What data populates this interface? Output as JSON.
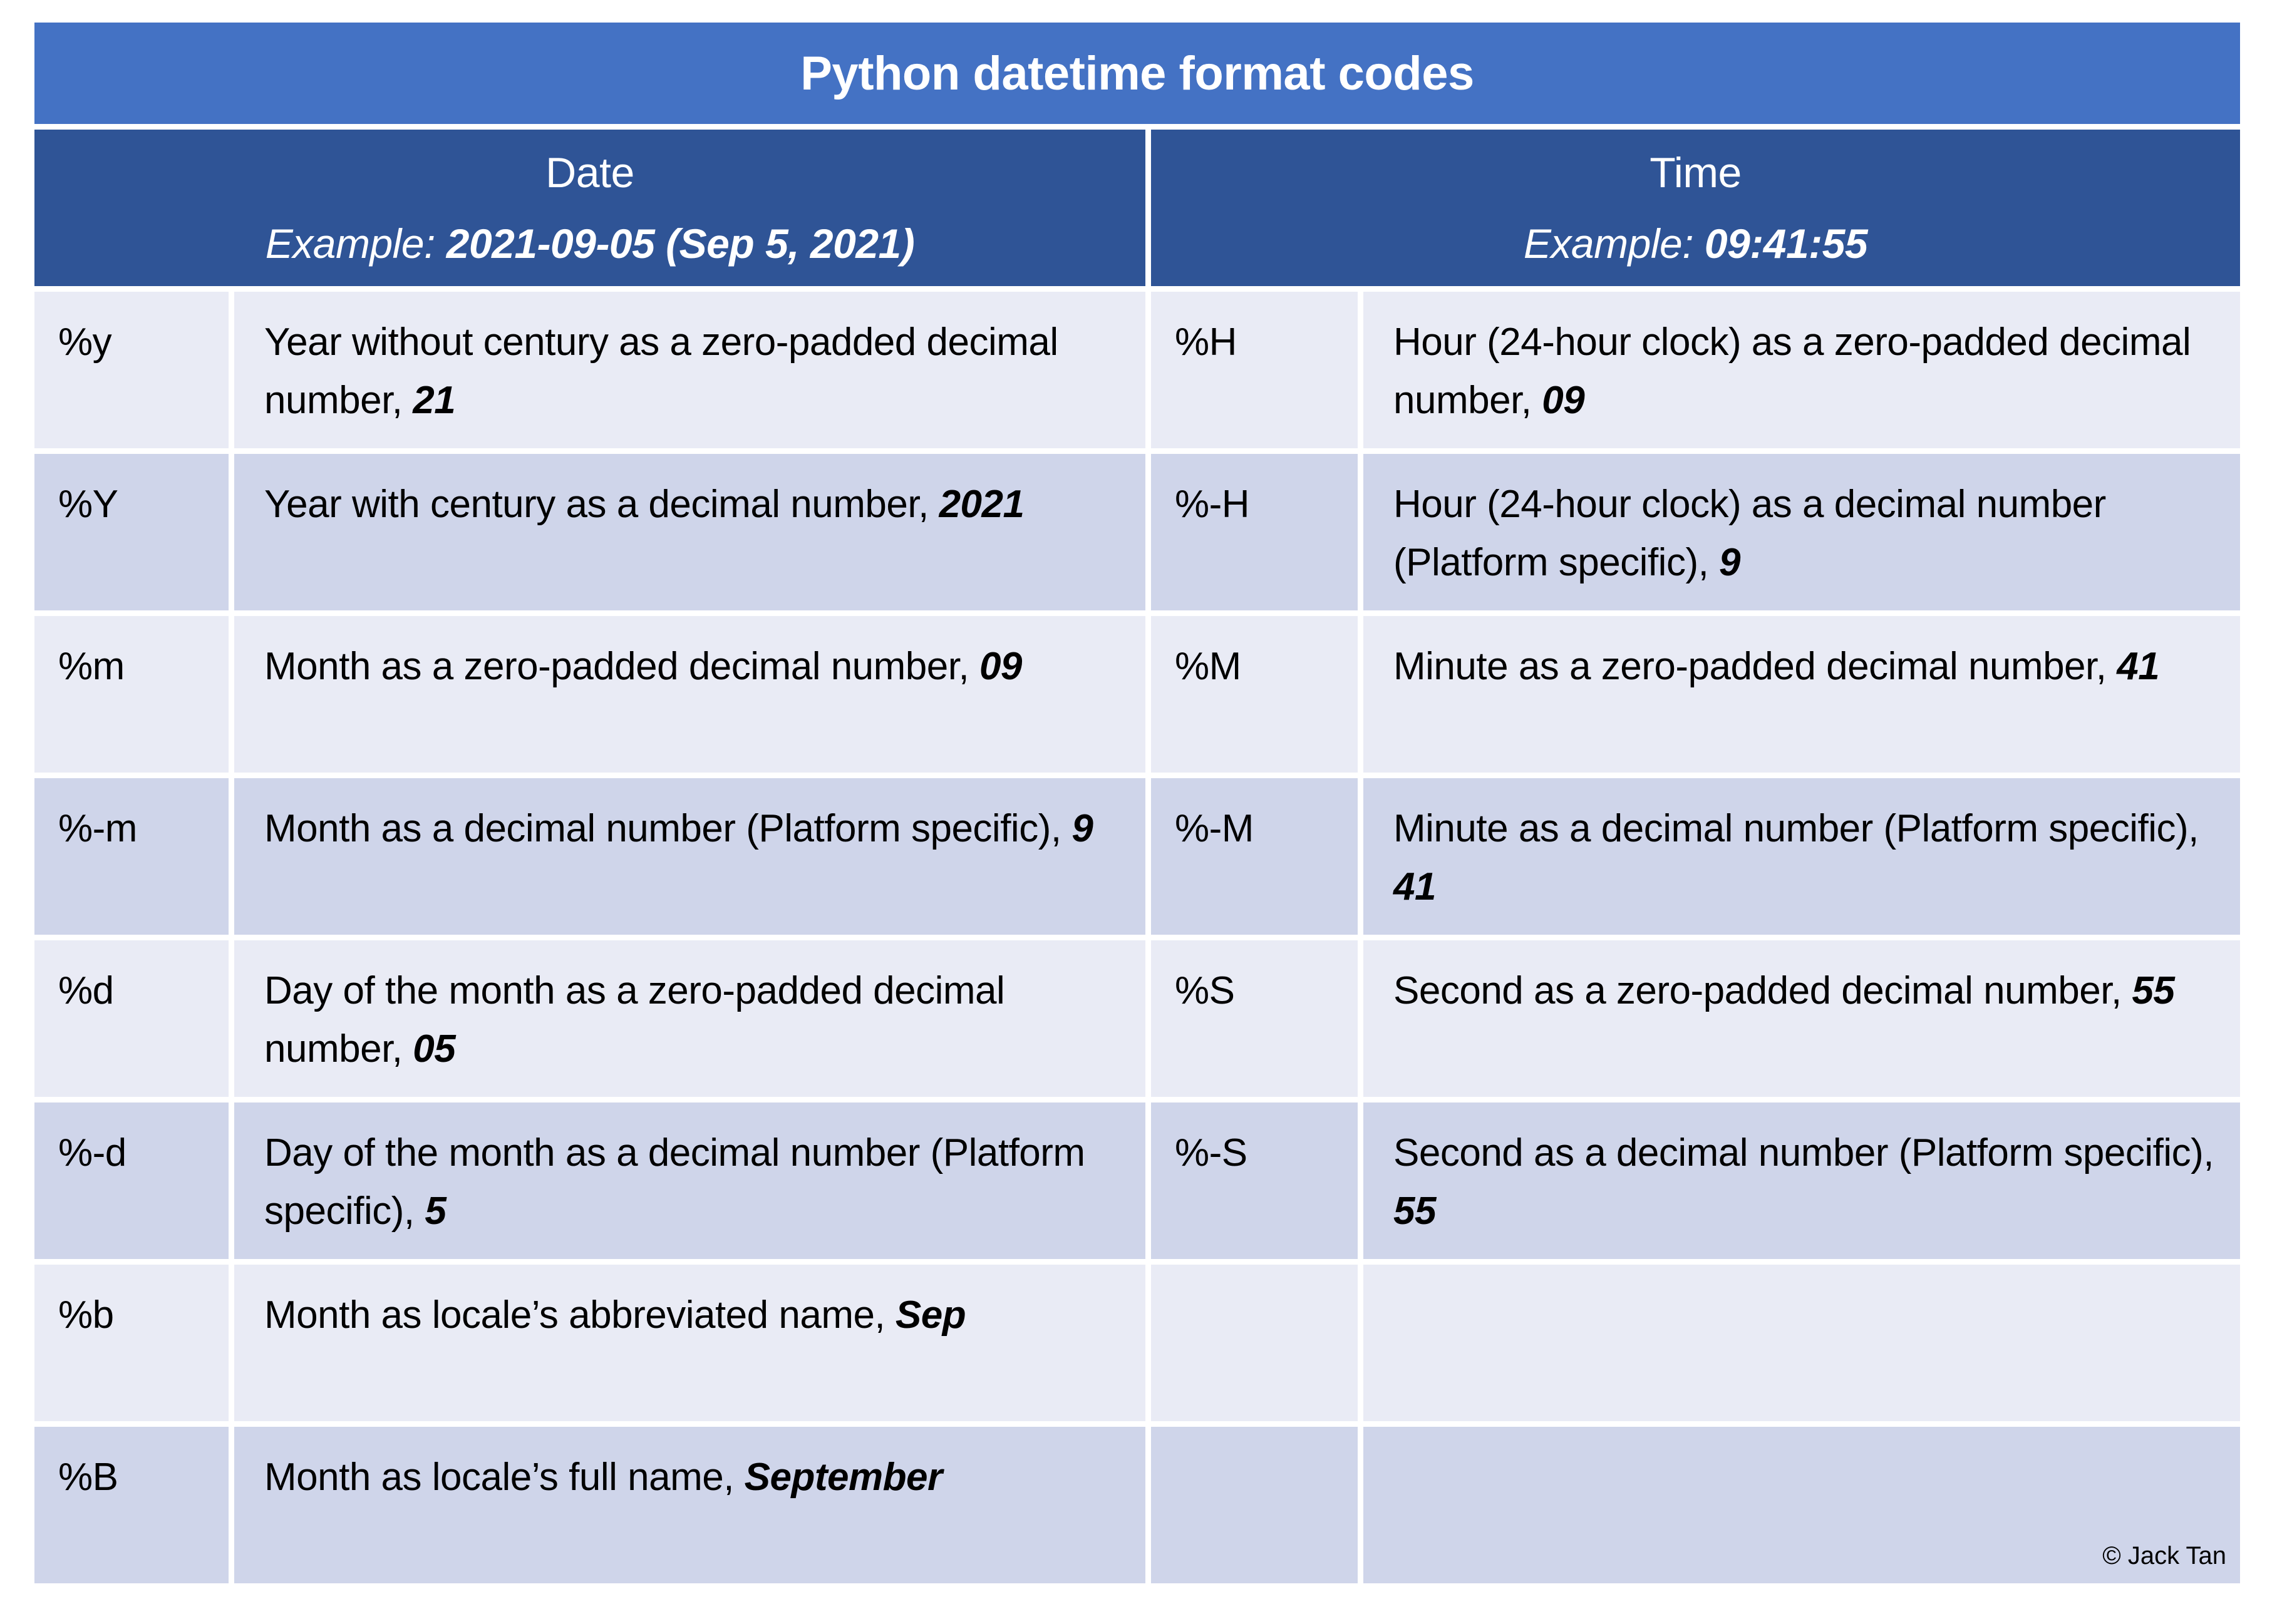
{
  "title": "Python datetime format codes",
  "columns": {
    "date": {
      "label": "Date",
      "example_label": "Example: ",
      "example_value": "2021-09-05 (Sep 5, 2021)"
    },
    "time": {
      "label": "Time",
      "example_label": "Example: ",
      "example_value": "09:41:55"
    }
  },
  "rows": [
    {
      "date": {
        "code": "%y",
        "desc": "Year without century as a zero-padded decimal number, ",
        "example": "21"
      },
      "time": {
        "code": "%H",
        "desc": "Hour (24-hour clock) as a zero-padded decimal number, ",
        "example": "09"
      }
    },
    {
      "date": {
        "code": "%Y",
        "desc": "Year with century as a decimal number, ",
        "example": "2021"
      },
      "time": {
        "code": "%-H",
        "desc": "Hour (24-hour clock) as a decimal number (Platform specific), ",
        "example": "9"
      }
    },
    {
      "date": {
        "code": "%m",
        "desc": "Month as a zero-padded decimal number, ",
        "example": "09"
      },
      "time": {
        "code": "%M",
        "desc": "Minute as a zero-padded decimal number, ",
        "example": "41"
      }
    },
    {
      "date": {
        "code": "%-m",
        "desc": "Month as a decimal number (Platform specific), ",
        "example": "9"
      },
      "time": {
        "code": "%-M",
        "desc": "Minute as a decimal number (Platform specific), ",
        "example": "41"
      }
    },
    {
      "date": {
        "code": "%d",
        "desc": "Day of the month as a zero-padded decimal number, ",
        "example": "05"
      },
      "time": {
        "code": "%S",
        "desc": "Second as a zero-padded decimal number, ",
        "example": "55"
      }
    },
    {
      "date": {
        "code": "%-d",
        "desc": "Day of the month as a decimal number (Platform specific), ",
        "example": "5"
      },
      "time": {
        "code": "%-S",
        "desc": "Second as a decimal number (Platform specific), ",
        "example": "55"
      }
    },
    {
      "date": {
        "code": "%b",
        "desc": "Month as locale’s abbreviated name, ",
        "example": "Sep"
      },
      "time": {
        "code": "",
        "desc": "",
        "example": ""
      }
    },
    {
      "date": {
        "code": "%B",
        "desc": "Month as locale’s full name, ",
        "example": "September"
      },
      "time": {
        "code": "",
        "desc": "",
        "example": ""
      }
    }
  ],
  "footer": {
    "copyright": "© Jack Tan"
  },
  "colors": {
    "title_bg": "#4472C4",
    "header_bg": "#2F5496",
    "row_light": "#E9EBF5",
    "row_band": "#CFD5EA",
    "header_text": "#FFFFFF",
    "body_text": "#000000"
  }
}
